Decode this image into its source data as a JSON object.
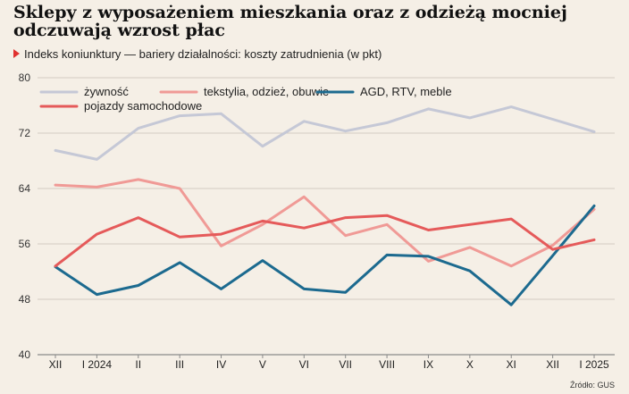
{
  "title": "Sklepy z wyposażeniem mieszkania oraz z odzieżą mocniej odczuwają wzrost płac",
  "subtitle": "Indeks koniunktury — bariery działalności: koszty zatrudnienia (w pkt)",
  "source": "Źródło: GUS",
  "colors": {
    "background": "#f5efe6",
    "accent": "#e0312f"
  },
  "chart_data": {
    "type": "line",
    "title": "Sklepy z wyposażeniem mieszkania oraz z odzieżą mocniej odczuwają wzrost płac",
    "subtitle": "Indeks koniunktury — bariery działalności: koszty zatrudnienia (w pkt)",
    "categories": [
      "XII",
      "I 2024",
      "II",
      "III",
      "IV",
      "V",
      "VI",
      "VII",
      "VIII",
      "IX",
      "X",
      "XI",
      "XII",
      "I 2025"
    ],
    "ylim": [
      40,
      80
    ],
    "yticks": [
      40,
      48,
      56,
      64,
      72,
      80
    ],
    "grid": true,
    "legend": "top",
    "series": [
      {
        "name": "żywność",
        "color": "#c5c8d6",
        "values": [
          69.5,
          68.2,
          72.7,
          74.5,
          74.8,
          70.1,
          73.7,
          72.3,
          73.5,
          75.5,
          74.2,
          75.8,
          74.0,
          72.2
        ]
      },
      {
        "name": "tekstylia, odzież, obuwie",
        "color": "#f09a96",
        "values": [
          64.5,
          64.2,
          65.3,
          64.0,
          55.7,
          58.8,
          62.8,
          57.2,
          58.8,
          53.5,
          55.5,
          52.8,
          55.8,
          61.0
        ]
      },
      {
        "name": "AGD, RTV, meble",
        "color": "#1c6a8f",
        "values": [
          52.7,
          48.7,
          50.0,
          53.3,
          49.5,
          53.6,
          49.5,
          49.0,
          54.4,
          54.2,
          52.1,
          47.2,
          54.3,
          61.5
        ]
      },
      {
        "name": "pojazdy samochodowe",
        "color": "#e55a5a",
        "values": [
          52.8,
          57.4,
          59.8,
          57.0,
          57.4,
          59.3,
          58.3,
          59.8,
          60.1,
          58.0,
          58.8,
          59.6,
          55.2,
          56.6
        ]
      }
    ]
  }
}
